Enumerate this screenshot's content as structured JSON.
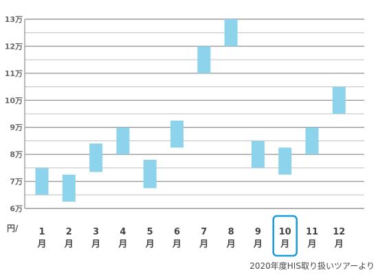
{
  "chart_data": {
    "type": "bar",
    "y_unit": "円/",
    "source": "2020年度HIS取り扱いツアーより",
    "ylim": [
      6,
      13
    ],
    "y_ticks": [
      {
        "value": 13,
        "label": "13万"
      },
      {
        "value": 12,
        "label": "12万"
      },
      {
        "value": 11,
        "label": "11万"
      },
      {
        "value": 10,
        "label": "10万"
      },
      {
        "value": 9,
        "label": "9万"
      },
      {
        "value": 8,
        "label": "8万"
      },
      {
        "value": 7,
        "label": "7万"
      },
      {
        "value": 6,
        "label": "6万"
      }
    ],
    "grid": true,
    "bar_color": "#8dd3ec",
    "highlight_color": "#1a9ad6",
    "axis_line_color": "#9a9a9a",
    "grid_color": "#bdbdbd",
    "categories": [
      {
        "num": "1",
        "suffix": "月",
        "low": 6.5,
        "high": 7.5,
        "highlight": false
      },
      {
        "num": "2",
        "suffix": "月",
        "low": 6.25,
        "high": 7.25,
        "highlight": false
      },
      {
        "num": "3",
        "suffix": "月",
        "low": 7.35,
        "high": 8.4,
        "highlight": false
      },
      {
        "num": "4",
        "suffix": "月",
        "low": 8.0,
        "high": 9.0,
        "highlight": false
      },
      {
        "num": "5",
        "suffix": "月",
        "low": 6.75,
        "high": 7.8,
        "highlight": false
      },
      {
        "num": "6",
        "suffix": "月",
        "low": 8.25,
        "high": 9.25,
        "highlight": false
      },
      {
        "num": "7",
        "suffix": "月",
        "low": 11.0,
        "high": 12.0,
        "highlight": false
      },
      {
        "num": "8",
        "suffix": "月",
        "low": 12.0,
        "high": 13.0,
        "highlight": false
      },
      {
        "num": "9",
        "suffix": "月",
        "low": 7.5,
        "high": 8.5,
        "highlight": false
      },
      {
        "num": "10",
        "suffix": "月",
        "low": 7.25,
        "high": 8.25,
        "highlight": true
      },
      {
        "num": "11",
        "suffix": "月",
        "low": 8.0,
        "high": 9.0,
        "highlight": false
      },
      {
        "num": "12",
        "suffix": "月",
        "low": 9.5,
        "high": 10.5,
        "highlight": false
      }
    ]
  }
}
